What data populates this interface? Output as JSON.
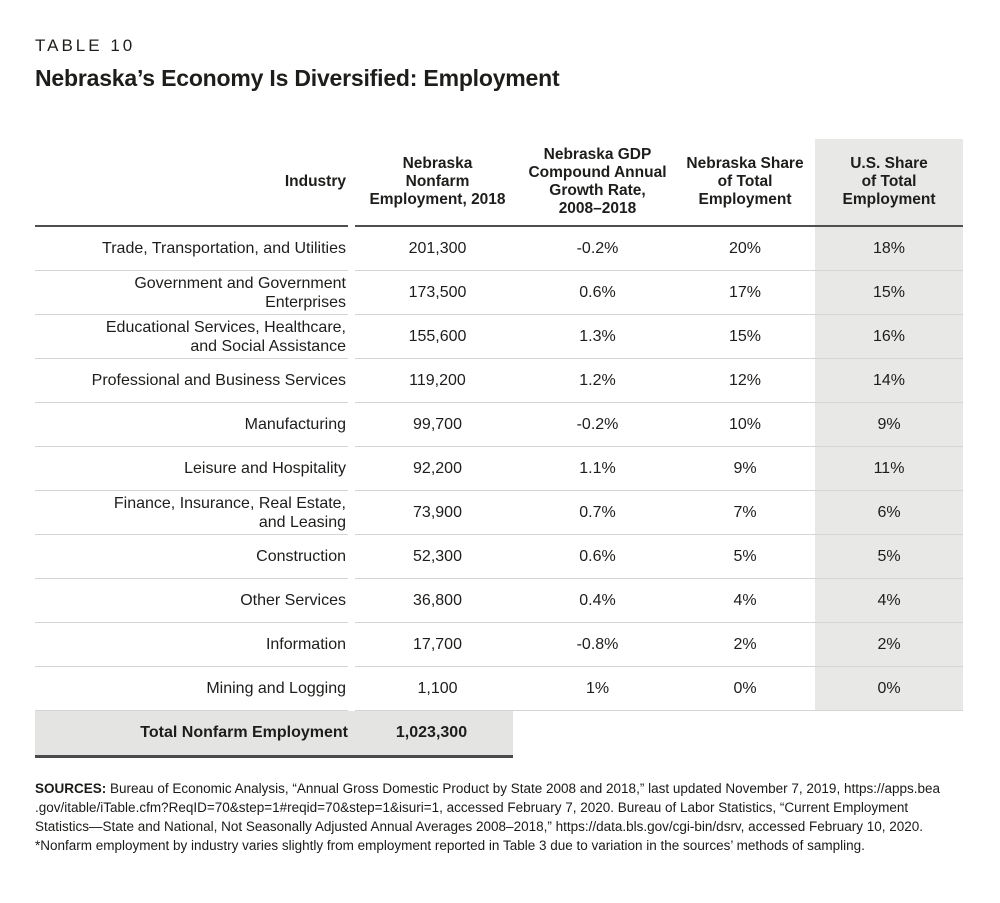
{
  "colors": {
    "text": "#1d1d1b",
    "rule_dark": "#4f4f4f",
    "rule_light": "#d5d5d3",
    "shaded_col": "#e8e8e6",
    "total_bg": "#e4e4e2"
  },
  "header": {
    "table_label": "TABLE 10",
    "title": "Nebraska’s Economy Is Diversified: Employment"
  },
  "table": {
    "columns": {
      "industry": "Industry",
      "employment": "Nebraska\nNonfarm\nEmployment, 2018",
      "growth": "Nebraska GDP\nCompound Annual\nGrowth Rate,\n2008–2018",
      "ne_share": "Nebraska Share\nof Total\nEmployment",
      "us_share": "U.S. Share\nof Total\nEmployment"
    },
    "rows": [
      {
        "industry": "Trade, Transportation, and Utilities",
        "employment": "201,300",
        "growth": "-0.2%",
        "ne_share": "20%",
        "us_share": "18%"
      },
      {
        "industry": "Government and Government\nEnterprises",
        "employment": "173,500",
        "growth": "0.6%",
        "ne_share": "17%",
        "us_share": "15%"
      },
      {
        "industry": "Educational Services, Healthcare,\nand Social Assistance",
        "employment": "155,600",
        "growth": "1.3%",
        "ne_share": "15%",
        "us_share": "16%"
      },
      {
        "industry": "Professional and Business Services",
        "employment": "119,200",
        "growth": "1.2%",
        "ne_share": "12%",
        "us_share": "14%"
      },
      {
        "industry": "Manufacturing",
        "employment": "99,700",
        "growth": "-0.2%",
        "ne_share": "10%",
        "us_share": "9%"
      },
      {
        "industry": "Leisure and Hospitality",
        "employment": "92,200",
        "growth": "1.1%",
        "ne_share": "9%",
        "us_share": "11%"
      },
      {
        "industry": "Finance, Insurance, Real Estate,\nand Leasing",
        "employment": "73,900",
        "growth": "0.7%",
        "ne_share": "7%",
        "us_share": "6%"
      },
      {
        "industry": "Construction",
        "employment": "52,300",
        "growth": "0.6%",
        "ne_share": "5%",
        "us_share": "5%"
      },
      {
        "industry": "Other Services",
        "employment": "36,800",
        "growth": "0.4%",
        "ne_share": "4%",
        "us_share": "4%"
      },
      {
        "industry": "Information",
        "employment": "17,700",
        "growth": "-0.8%",
        "ne_share": "2%",
        "us_share": "2%"
      },
      {
        "industry": "Mining and Logging",
        "employment": "1,100",
        "growth": "1%",
        "ne_share": "0%",
        "us_share": "0%"
      }
    ],
    "total": {
      "label": "Total Nonfarm Employment",
      "value": "1,023,300"
    }
  },
  "footer": {
    "sources_label": "SOURCES:",
    "sources_text": "Bureau of Economic Analysis, “Annual Gross Domestic Product by State 2008 and 2018,” last updated November 7, 2019, https://apps.bea\n.gov/itable/iTable.cfm?ReqID=70&step=1#reqid=70&step=1&isuri=1, accessed February 7, 2020. Bureau of Labor Statistics, “Current Employment\nStatistics—State and National, Not Seasonally Adjusted Annual Averages 2008–2018,” https://data.bls.gov/cgi-bin/dsrv, accessed February 10, 2020.",
    "footnote": "*Nonfarm employment by industry varies slightly from employment reported in Table 3 due to variation in the sources’ methods of sampling."
  }
}
